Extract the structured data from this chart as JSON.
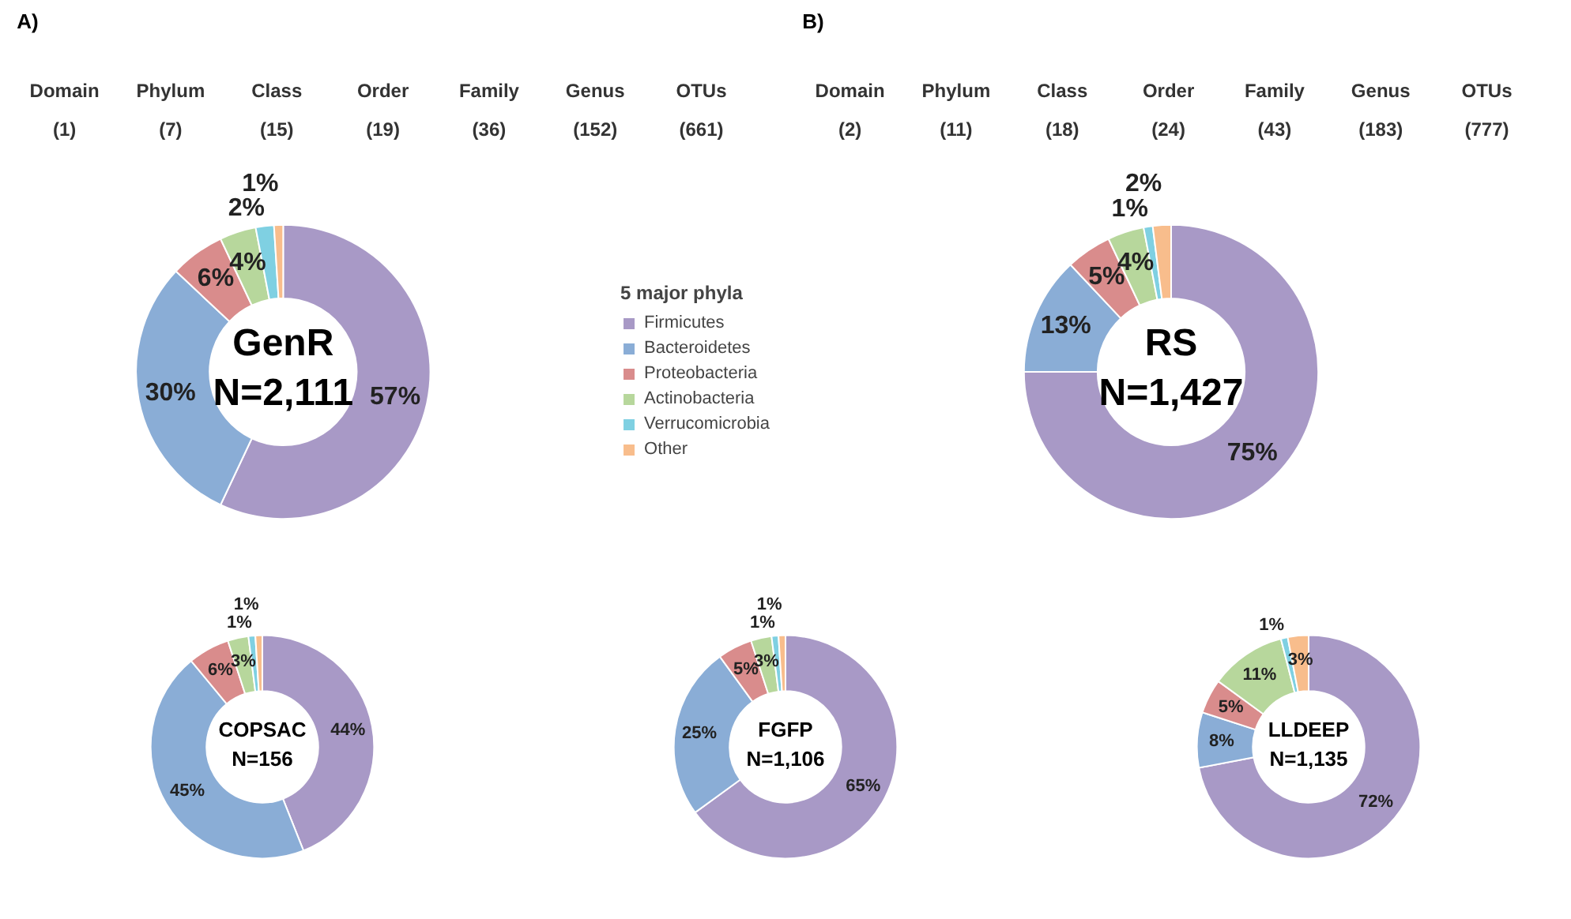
{
  "chart_data": [
    {
      "type": "other",
      "title": "A)",
      "categories": [
        "Domain",
        "Phylum",
        "Class",
        "Order",
        "Family",
        "Genus",
        "OTUs"
      ],
      "value_labels": [
        "(1)",
        "(7)",
        "(15)",
        "(19)",
        "(36)",
        "(152)",
        "(661)"
      ]
    },
    {
      "type": "other",
      "title": "B)",
      "categories": [
        "Domain",
        "Phylum",
        "Class",
        "Order",
        "Family",
        "Genus",
        "OTUs"
      ],
      "value_labels": [
        "(2)",
        "(11)",
        "(18)",
        "(24)",
        "(43)",
        "(183)",
        "(777)"
      ]
    },
    {
      "type": "donut",
      "title": "GenR",
      "subtitle": "N=2,111",
      "legend_title": "5 major phyla",
      "legend": "right",
      "categories": [
        "Firmicutes",
        "Bacteroidetes",
        "Proteobacteria",
        "Actinobacteria",
        "Verrucomicrobia",
        "Other"
      ],
      "values": [
        57,
        30,
        6,
        4,
        2,
        1
      ],
      "value_labels": [
        "57%",
        "30%",
        "6%",
        "4%",
        "2%",
        "1%"
      ],
      "colors": [
        "#a899c6",
        "#8aadd6",
        "#d98c8c",
        "#b7d79c",
        "#7fd0e2",
        "#f8bd8c"
      ]
    },
    {
      "type": "donut",
      "title": "RS",
      "subtitle": "N=1,427",
      "values": [
        75,
        13,
        5,
        4,
        1,
        2
      ],
      "value_labels": [
        "75%",
        "13%",
        "5%",
        "4%",
        "1%",
        "2%"
      ],
      "colors": [
        "#a899c6",
        "#8aadd6",
        "#d98c8c",
        "#b7d79c",
        "#7fd0e2",
        "#f8bd8c"
      ]
    },
    {
      "type": "donut",
      "title": "COPSAC",
      "subtitle": "N=156",
      "values": [
        44,
        45,
        6,
        3,
        1,
        1
      ],
      "value_labels": [
        "44%",
        "45%",
        "6%",
        "3%",
        "1%",
        "1%"
      ],
      "colors": [
        "#a899c6",
        "#8aadd6",
        "#d98c8c",
        "#b7d79c",
        "#7fd0e2",
        "#f8bd8c"
      ]
    },
    {
      "type": "donut",
      "title": "FGFP",
      "subtitle": "N=1,106",
      "values": [
        65,
        25,
        5,
        3,
        1,
        1
      ],
      "value_labels": [
        "65%",
        "25%",
        "5%",
        "3%",
        "1%",
        "1%"
      ],
      "colors": [
        "#a899c6",
        "#8aadd6",
        "#d98c8c",
        "#b7d79c",
        "#7fd0e2",
        "#f8bd8c"
      ]
    },
    {
      "type": "donut",
      "title": "LLDEEP",
      "subtitle": "N=1,135",
      "values": [
        72,
        8,
        5,
        11,
        1,
        3
      ],
      "value_labels": [
        "72%",
        "8%",
        "5%",
        "11%",
        "1%",
        "3%"
      ],
      "colors": [
        "#a899c6",
        "#8aadd6",
        "#d98c8c",
        "#b7d79c",
        "#7fd0e2",
        "#f8bd8c"
      ]
    }
  ]
}
